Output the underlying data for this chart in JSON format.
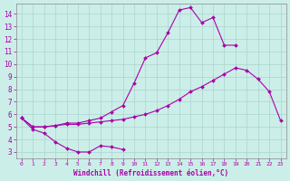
{
  "background_color": "#cceee8",
  "grid_color": "#aad4ce",
  "line_color": "#aa00aa",
  "xlabel": "Windchill (Refroidissement éolien,°C)",
  "xlim": [
    -0.5,
    23.5
  ],
  "ylim": [
    2.5,
    14.8
  ],
  "yticks": [
    3,
    4,
    5,
    6,
    7,
    8,
    9,
    10,
    11,
    12,
    13,
    14
  ],
  "xticks": [
    0,
    1,
    2,
    3,
    4,
    5,
    6,
    7,
    8,
    9,
    10,
    11,
    12,
    13,
    14,
    15,
    16,
    17,
    18,
    19,
    20,
    21,
    22,
    23
  ],
  "line1_x": [
    0,
    1,
    2,
    3,
    4,
    5,
    6,
    7,
    8,
    9
  ],
  "line1_y": [
    5.7,
    4.8,
    4.5,
    3.8,
    3.3,
    3.0,
    3.0,
    3.5,
    3.4,
    3.2
  ],
  "line2_x": [
    0,
    1,
    2,
    3,
    4,
    5,
    6,
    7,
    8,
    9,
    10,
    11,
    12,
    13,
    14,
    15,
    16,
    17,
    18,
    19,
    20,
    21,
    22,
    23
  ],
  "line2_y": [
    5.7,
    5.0,
    5.0,
    5.1,
    5.2,
    5.2,
    5.3,
    5.4,
    5.5,
    5.6,
    5.8,
    6.0,
    6.3,
    6.7,
    7.2,
    7.8,
    8.2,
    8.7,
    9.2,
    9.7,
    9.5,
    8.8,
    7.8,
    5.5
  ],
  "line3_x": [
    0,
    1,
    2,
    3,
    4,
    5,
    6,
    7,
    8,
    9,
    10,
    11,
    12,
    13,
    14,
    15,
    16,
    17,
    18,
    19
  ],
  "line3_y": [
    5.7,
    5.0,
    5.0,
    5.1,
    5.3,
    5.3,
    5.5,
    5.7,
    6.2,
    6.7,
    8.5,
    10.5,
    10.9,
    12.5,
    14.3,
    14.5,
    13.3,
    13.7,
    11.5,
    11.5
  ]
}
